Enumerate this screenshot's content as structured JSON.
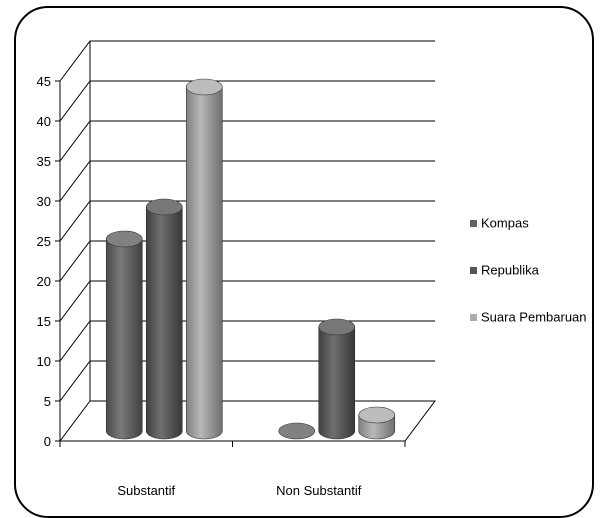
{
  "chart_data": {
    "type": "bar",
    "style": "3d-cylinder",
    "categories": [
      "Substantif",
      "Non Substantif"
    ],
    "series": [
      {
        "name": "Kompas",
        "values": [
          24,
          0
        ],
        "color": "#626262"
      },
      {
        "name": "Republika",
        "values": [
          28,
          13
        ],
        "color": "#555555"
      },
      {
        "name": "Suara Pembaruan",
        "values": [
          43,
          2
        ],
        "color": "#ababab"
      }
    ],
    "yticks": [
      "0",
      "5",
      "10",
      "15",
      "20",
      "25",
      "30",
      "35",
      "40",
      "45"
    ],
    "ylim": [
      0,
      45
    ],
    "grid": true,
    "legend_position": "right"
  }
}
